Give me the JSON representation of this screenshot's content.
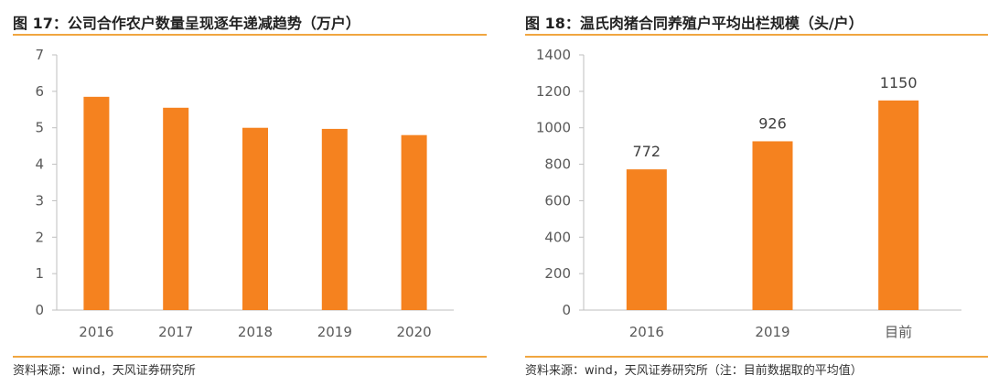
{
  "left": {
    "title": "图 17：公司合作农户数量呈现逐年递减趋势（万户）",
    "source": "资料来源：wind，天风证券研究所",
    "chart_data": {
      "type": "bar",
      "categories": [
        "2016",
        "2017",
        "2018",
        "2019",
        "2020"
      ],
      "values": [
        5.85,
        5.55,
        5.0,
        4.97,
        4.8
      ],
      "ylim": [
        0,
        7
      ],
      "yticks": [
        "0",
        "1",
        "2",
        "3",
        "4",
        "5",
        "6",
        "7"
      ],
      "color": "#f5821f",
      "grid": false
    }
  },
  "right": {
    "title": "图 18：温氏肉猪合同养殖户平均出栏规模（头/户）",
    "source": "资料来源：wind，天风证券研究所（注：目前数据取的平均值）",
    "chart_data": {
      "type": "bar",
      "categories": [
        "2016",
        "2019",
        "目前"
      ],
      "values": [
        772,
        926,
        1150
      ],
      "data_labels": [
        "772",
        "926",
        "1150"
      ],
      "ylim": [
        0,
        1400
      ],
      "yticks": [
        "0",
        "200",
        "400",
        "600",
        "800",
        "1000",
        "1200",
        "1400"
      ],
      "color": "#f5821f",
      "grid": false
    }
  }
}
